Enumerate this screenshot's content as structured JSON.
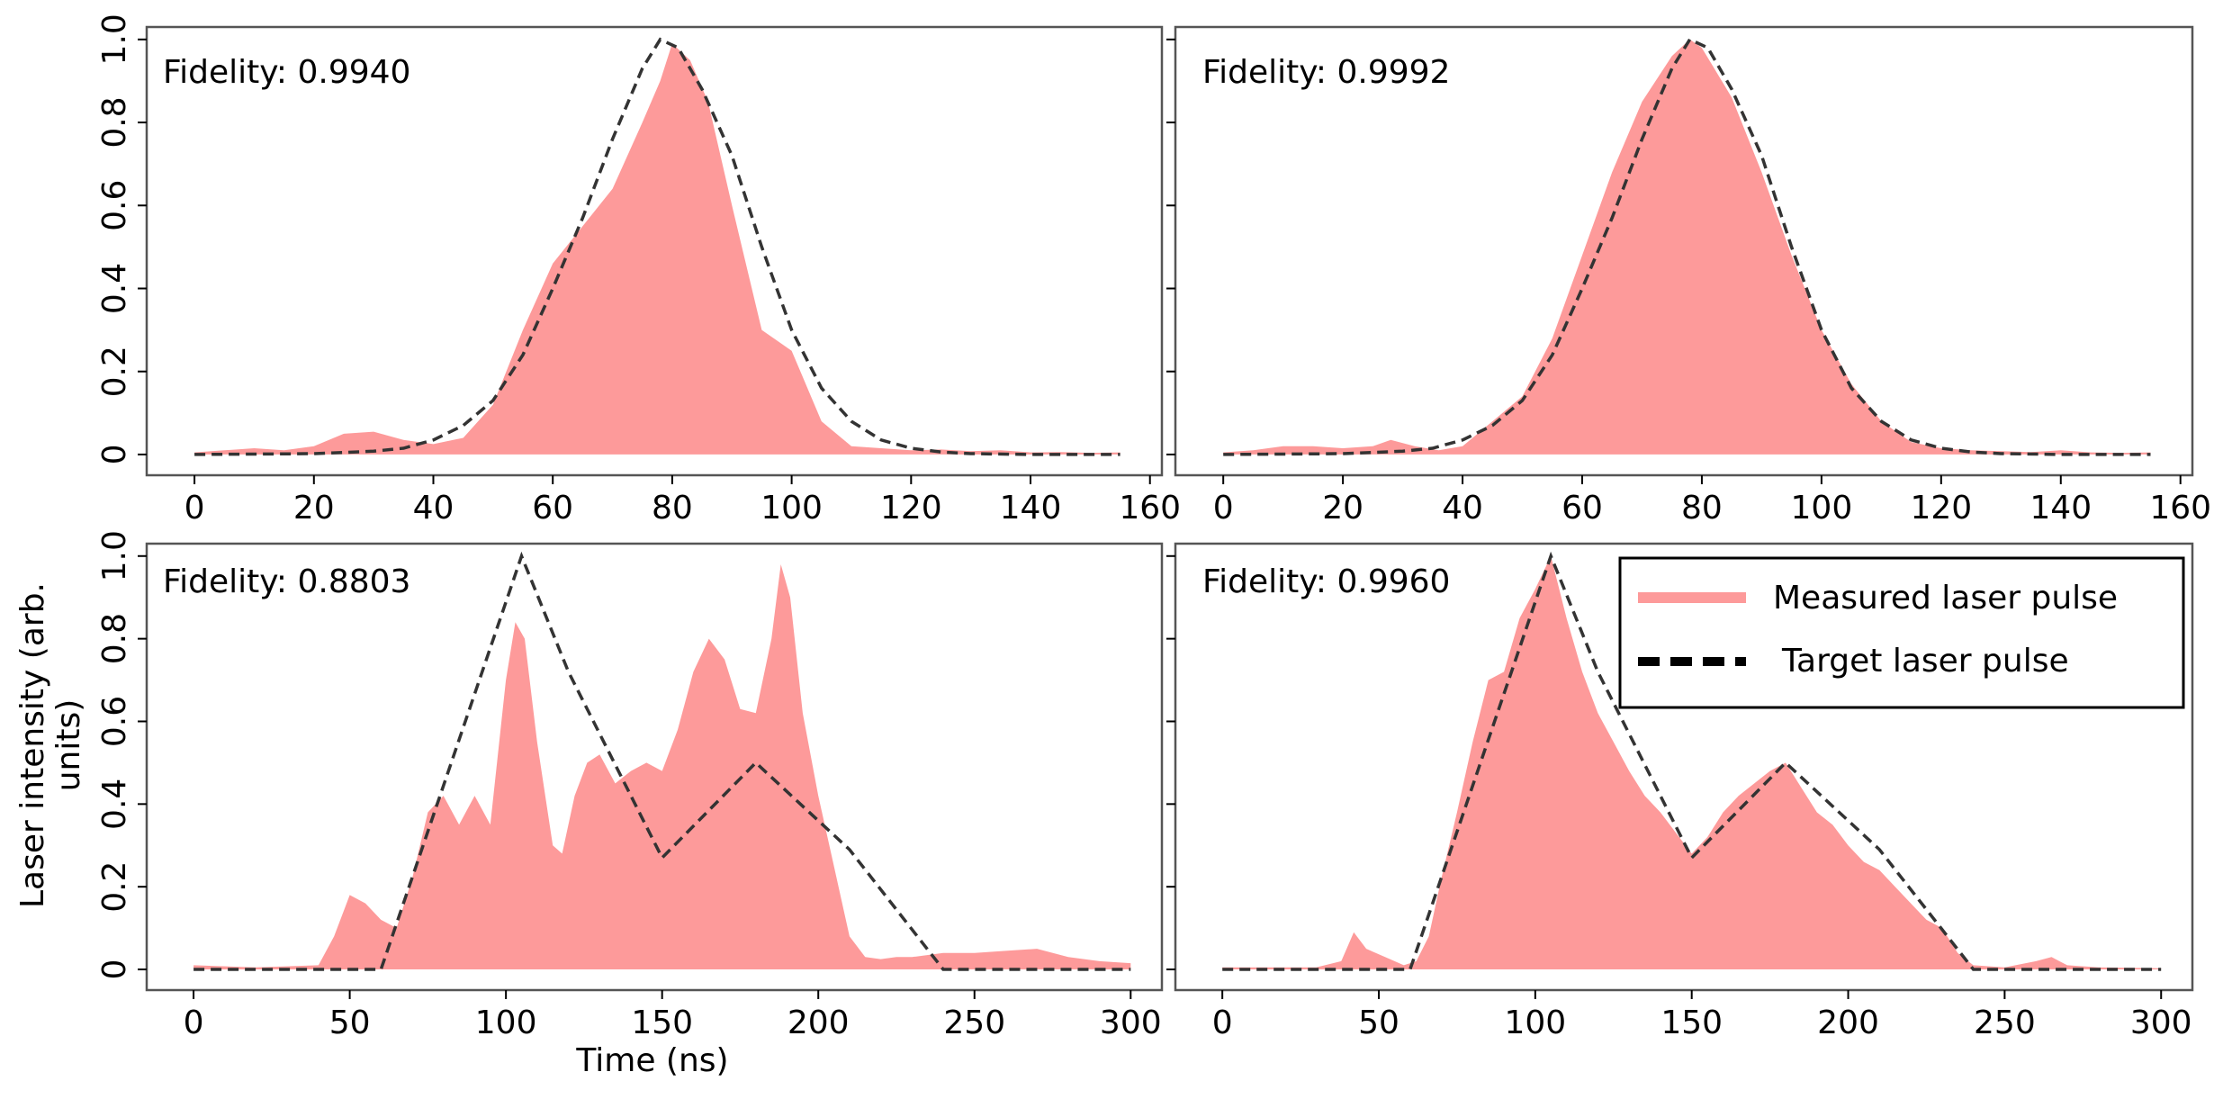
{
  "figure": {
    "ylabel_line1": "Laser intensity (arb.",
    "ylabel_line2": "units)",
    "xlabel": "Time (ns)",
    "legend": {
      "measured": "Measured laser pulse",
      "target": "Target laser pulse"
    },
    "colors": {
      "measured": "#fd9a9a",
      "target": "#333333",
      "frame": "#555555"
    }
  },
  "chart_data": [
    {
      "type": "area",
      "id": "top-left",
      "annotation": "Fidelity: 0.9940",
      "xlim": [
        -8,
        162
      ],
      "ylim": [
        -0.05,
        1.03
      ],
      "xticks": [
        0,
        20,
        40,
        60,
        80,
        100,
        120,
        140,
        160
      ],
      "xtick_labels": [
        "0",
        "20",
        "40",
        "60",
        "80",
        "100",
        "120",
        "140",
        "160"
      ],
      "yticks": [
        0,
        0.2,
        0.4,
        0.6,
        0.8,
        1.0
      ],
      "ytick_labels": [
        "0",
        "0.2",
        "0.4",
        "0.6",
        "0.8",
        "1.0"
      ],
      "series": [
        {
          "name": "Measured laser pulse",
          "x": [
            0,
            5,
            10,
            15,
            20,
            25,
            30,
            35,
            40,
            45,
            50,
            55,
            60,
            65,
            70,
            75,
            78,
            80,
            83,
            86,
            90,
            95,
            100,
            105,
            110,
            115,
            120,
            125,
            130,
            135,
            140,
            145,
            150,
            155
          ],
          "y": [
            0.005,
            0.01,
            0.015,
            0.01,
            0.02,
            0.05,
            0.055,
            0.035,
            0.025,
            0.04,
            0.12,
            0.3,
            0.46,
            0.55,
            0.64,
            0.8,
            0.9,
            0.99,
            0.95,
            0.85,
            0.6,
            0.3,
            0.25,
            0.08,
            0.02,
            0.015,
            0.01,
            0.012,
            0.008,
            0.01,
            0.005,
            0.006,
            0.004,
            0.005
          ]
        },
        {
          "name": "Target laser pulse",
          "x": [
            0,
            10,
            20,
            30,
            35,
            40,
            45,
            50,
            55,
            60,
            65,
            70,
            75,
            78,
            81,
            85,
            90,
            95,
            100,
            105,
            110,
            115,
            120,
            125,
            130,
            140,
            155
          ],
          "y": [
            0,
            0.001,
            0.002,
            0.008,
            0.015,
            0.035,
            0.07,
            0.13,
            0.24,
            0.4,
            0.57,
            0.76,
            0.93,
            1.0,
            0.98,
            0.88,
            0.72,
            0.5,
            0.3,
            0.16,
            0.08,
            0.035,
            0.015,
            0.006,
            0.002,
            0.0,
            0.0
          ]
        }
      ]
    },
    {
      "type": "area",
      "id": "top-right",
      "annotation": "Fidelity: 0.9992",
      "xlim": [
        -8,
        162
      ],
      "ylim": [
        -0.05,
        1.03
      ],
      "xticks": [
        0,
        20,
        40,
        60,
        80,
        100,
        120,
        140,
        160
      ],
      "xtick_labels": [
        "0",
        "20",
        "40",
        "60",
        "80",
        "100",
        "120",
        "140",
        "160"
      ],
      "yticks": [
        0,
        0.2,
        0.4,
        0.6,
        0.8,
        1.0
      ],
      "ytick_labels": [],
      "series": [
        {
          "name": "Measured laser pulse",
          "x": [
            0,
            5,
            10,
            15,
            20,
            25,
            28,
            32,
            36,
            40,
            45,
            50,
            55,
            60,
            65,
            70,
            75,
            78,
            80,
            85,
            90,
            95,
            100,
            105,
            110,
            115,
            120,
            125,
            130,
            135,
            140,
            145,
            150,
            155
          ],
          "y": [
            0.005,
            0.01,
            0.02,
            0.02,
            0.015,
            0.02,
            0.035,
            0.02,
            0.01,
            0.02,
            0.08,
            0.14,
            0.28,
            0.48,
            0.68,
            0.85,
            0.96,
            1.0,
            0.98,
            0.86,
            0.68,
            0.48,
            0.3,
            0.17,
            0.08,
            0.03,
            0.015,
            0.01,
            0.008,
            0.006,
            0.01,
            0.005,
            0.004,
            0.005
          ]
        },
        {
          "name": "Target laser pulse",
          "x": [
            0,
            10,
            20,
            30,
            35,
            40,
            45,
            50,
            55,
            60,
            65,
            70,
            75,
            78,
            81,
            85,
            90,
            95,
            100,
            105,
            110,
            115,
            120,
            125,
            130,
            140,
            155
          ],
          "y": [
            0,
            0.001,
            0.002,
            0.008,
            0.015,
            0.035,
            0.07,
            0.13,
            0.24,
            0.4,
            0.57,
            0.76,
            0.93,
            1.0,
            0.98,
            0.88,
            0.72,
            0.5,
            0.3,
            0.16,
            0.08,
            0.035,
            0.015,
            0.006,
            0.002,
            0.0,
            0.0
          ]
        }
      ]
    },
    {
      "type": "area",
      "id": "bottom-left",
      "annotation": "Fidelity: 0.8803",
      "xlim": [
        -15,
        310
      ],
      "ylim": [
        -0.05,
        1.03
      ],
      "xticks": [
        0,
        50,
        100,
        150,
        200,
        250,
        300
      ],
      "xtick_labels": [
        "0",
        "50",
        "100",
        "150",
        "200",
        "250",
        "300"
      ],
      "yticks": [
        0,
        0.2,
        0.4,
        0.6,
        0.8,
        1.0
      ],
      "ytick_labels": [
        "0",
        "0.2",
        "0.4",
        "0.6",
        "0.8",
        "1.0"
      ],
      "series": [
        {
          "name": "Measured laser pulse",
          "x": [
            0,
            20,
            40,
            45,
            50,
            55,
            60,
            65,
            70,
            75,
            80,
            85,
            90,
            95,
            100,
            103,
            106,
            110,
            115,
            118,
            122,
            126,
            130,
            135,
            140,
            145,
            150,
            155,
            160,
            165,
            170,
            175,
            180,
            185,
            188,
            191,
            195,
            200,
            205,
            210,
            215,
            220,
            225,
            230,
            240,
            250,
            260,
            270,
            280,
            290,
            300
          ],
          "y": [
            0.01,
            0.005,
            0.01,
            0.08,
            0.18,
            0.16,
            0.12,
            0.1,
            0.22,
            0.38,
            0.42,
            0.35,
            0.42,
            0.35,
            0.7,
            0.84,
            0.8,
            0.55,
            0.3,
            0.28,
            0.42,
            0.5,
            0.52,
            0.45,
            0.48,
            0.5,
            0.48,
            0.58,
            0.72,
            0.8,
            0.75,
            0.63,
            0.62,
            0.8,
            0.98,
            0.9,
            0.62,
            0.42,
            0.25,
            0.08,
            0.03,
            0.025,
            0.03,
            0.03,
            0.04,
            0.04,
            0.045,
            0.05,
            0.03,
            0.02,
            0.015
          ]
        },
        {
          "name": "Target laser pulse",
          "x": [
            0,
            60,
            105,
            120,
            150,
            180,
            210,
            240,
            300
          ],
          "y": [
            0,
            0,
            1.0,
            0.72,
            0.27,
            0.5,
            0.29,
            0.0,
            0.0
          ]
        }
      ]
    },
    {
      "type": "area",
      "id": "bottom-right",
      "annotation": "Fidelity: 0.9960",
      "xlim": [
        -15,
        310
      ],
      "ylim": [
        -0.05,
        1.03
      ],
      "xticks": [
        0,
        50,
        100,
        150,
        200,
        250,
        300
      ],
      "xtick_labels": [
        "0",
        "50",
        "100",
        "150",
        "200",
        "250",
        "300"
      ],
      "yticks": [
        0,
        0.2,
        0.4,
        0.6,
        0.8,
        1.0
      ],
      "ytick_labels": [],
      "series": [
        {
          "name": "Measured laser pulse",
          "x": [
            0,
            30,
            38,
            42,
            46,
            52,
            58,
            62,
            66,
            70,
            75,
            80,
            85,
            90,
            95,
            100,
            105,
            110,
            115,
            120,
            125,
            130,
            135,
            140,
            145,
            150,
            155,
            160,
            165,
            170,
            175,
            180,
            185,
            190,
            195,
            200,
            205,
            210,
            215,
            220,
            225,
            230,
            235,
            240,
            250,
            260,
            265,
            270,
            280,
            290,
            300
          ],
          "y": [
            0.005,
            0.005,
            0.02,
            0.09,
            0.05,
            0.03,
            0.01,
            0.02,
            0.08,
            0.22,
            0.38,
            0.55,
            0.7,
            0.72,
            0.85,
            0.92,
            1.0,
            0.85,
            0.72,
            0.62,
            0.55,
            0.48,
            0.42,
            0.38,
            0.33,
            0.28,
            0.32,
            0.38,
            0.42,
            0.45,
            0.48,
            0.5,
            0.44,
            0.38,
            0.35,
            0.3,
            0.26,
            0.24,
            0.2,
            0.16,
            0.12,
            0.1,
            0.04,
            0.01,
            0.005,
            0.02,
            0.03,
            0.01,
            0.005,
            0.004,
            0.003
          ]
        },
        {
          "name": "Target laser pulse",
          "x": [
            0,
            60,
            105,
            120,
            150,
            180,
            210,
            240,
            300
          ],
          "y": [
            0,
            0,
            1.0,
            0.72,
            0.27,
            0.5,
            0.29,
            0.0,
            0.0
          ]
        }
      ]
    }
  ]
}
